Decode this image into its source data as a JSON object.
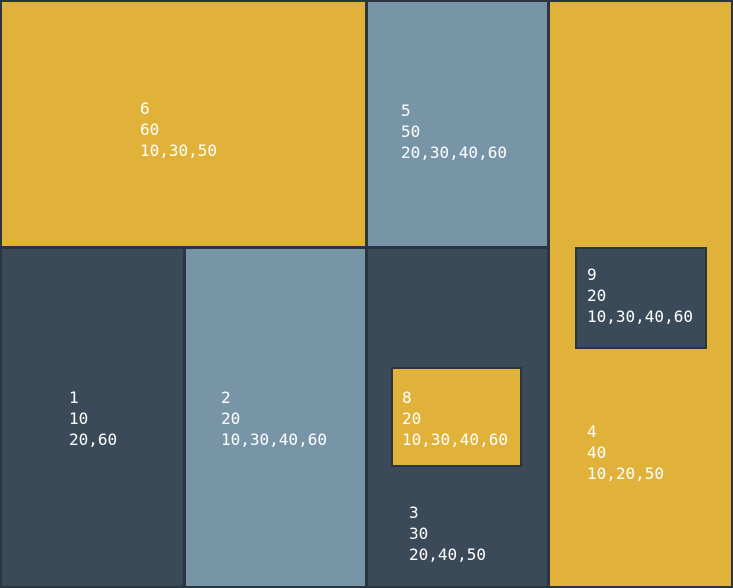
{
  "colors": {
    "gold": "#e1b23a",
    "dark_slate": "#3b4a58",
    "steel_blue": "#7895a8",
    "border": "#2b3540",
    "text": "#ffffff"
  },
  "boxes": {
    "b6": {
      "id": "6",
      "value": "60",
      "list": "10,30,50"
    },
    "b5": {
      "id": "5",
      "value": "50",
      "list": "20,30,40,60"
    },
    "b4": {
      "id": "4",
      "value": "40",
      "list": "10,20,50"
    },
    "b9": {
      "id": "9",
      "value": "20",
      "list": "10,30,40,60"
    },
    "b1": {
      "id": "1",
      "value": "10",
      "list": "20,60"
    },
    "b2": {
      "id": "2",
      "value": "20",
      "list": "10,30,40,60"
    },
    "b3": {
      "id": "3",
      "value": "30",
      "list": "20,40,50"
    },
    "b8": {
      "id": "8",
      "value": "20",
      "list": "10,30,40,60"
    }
  }
}
